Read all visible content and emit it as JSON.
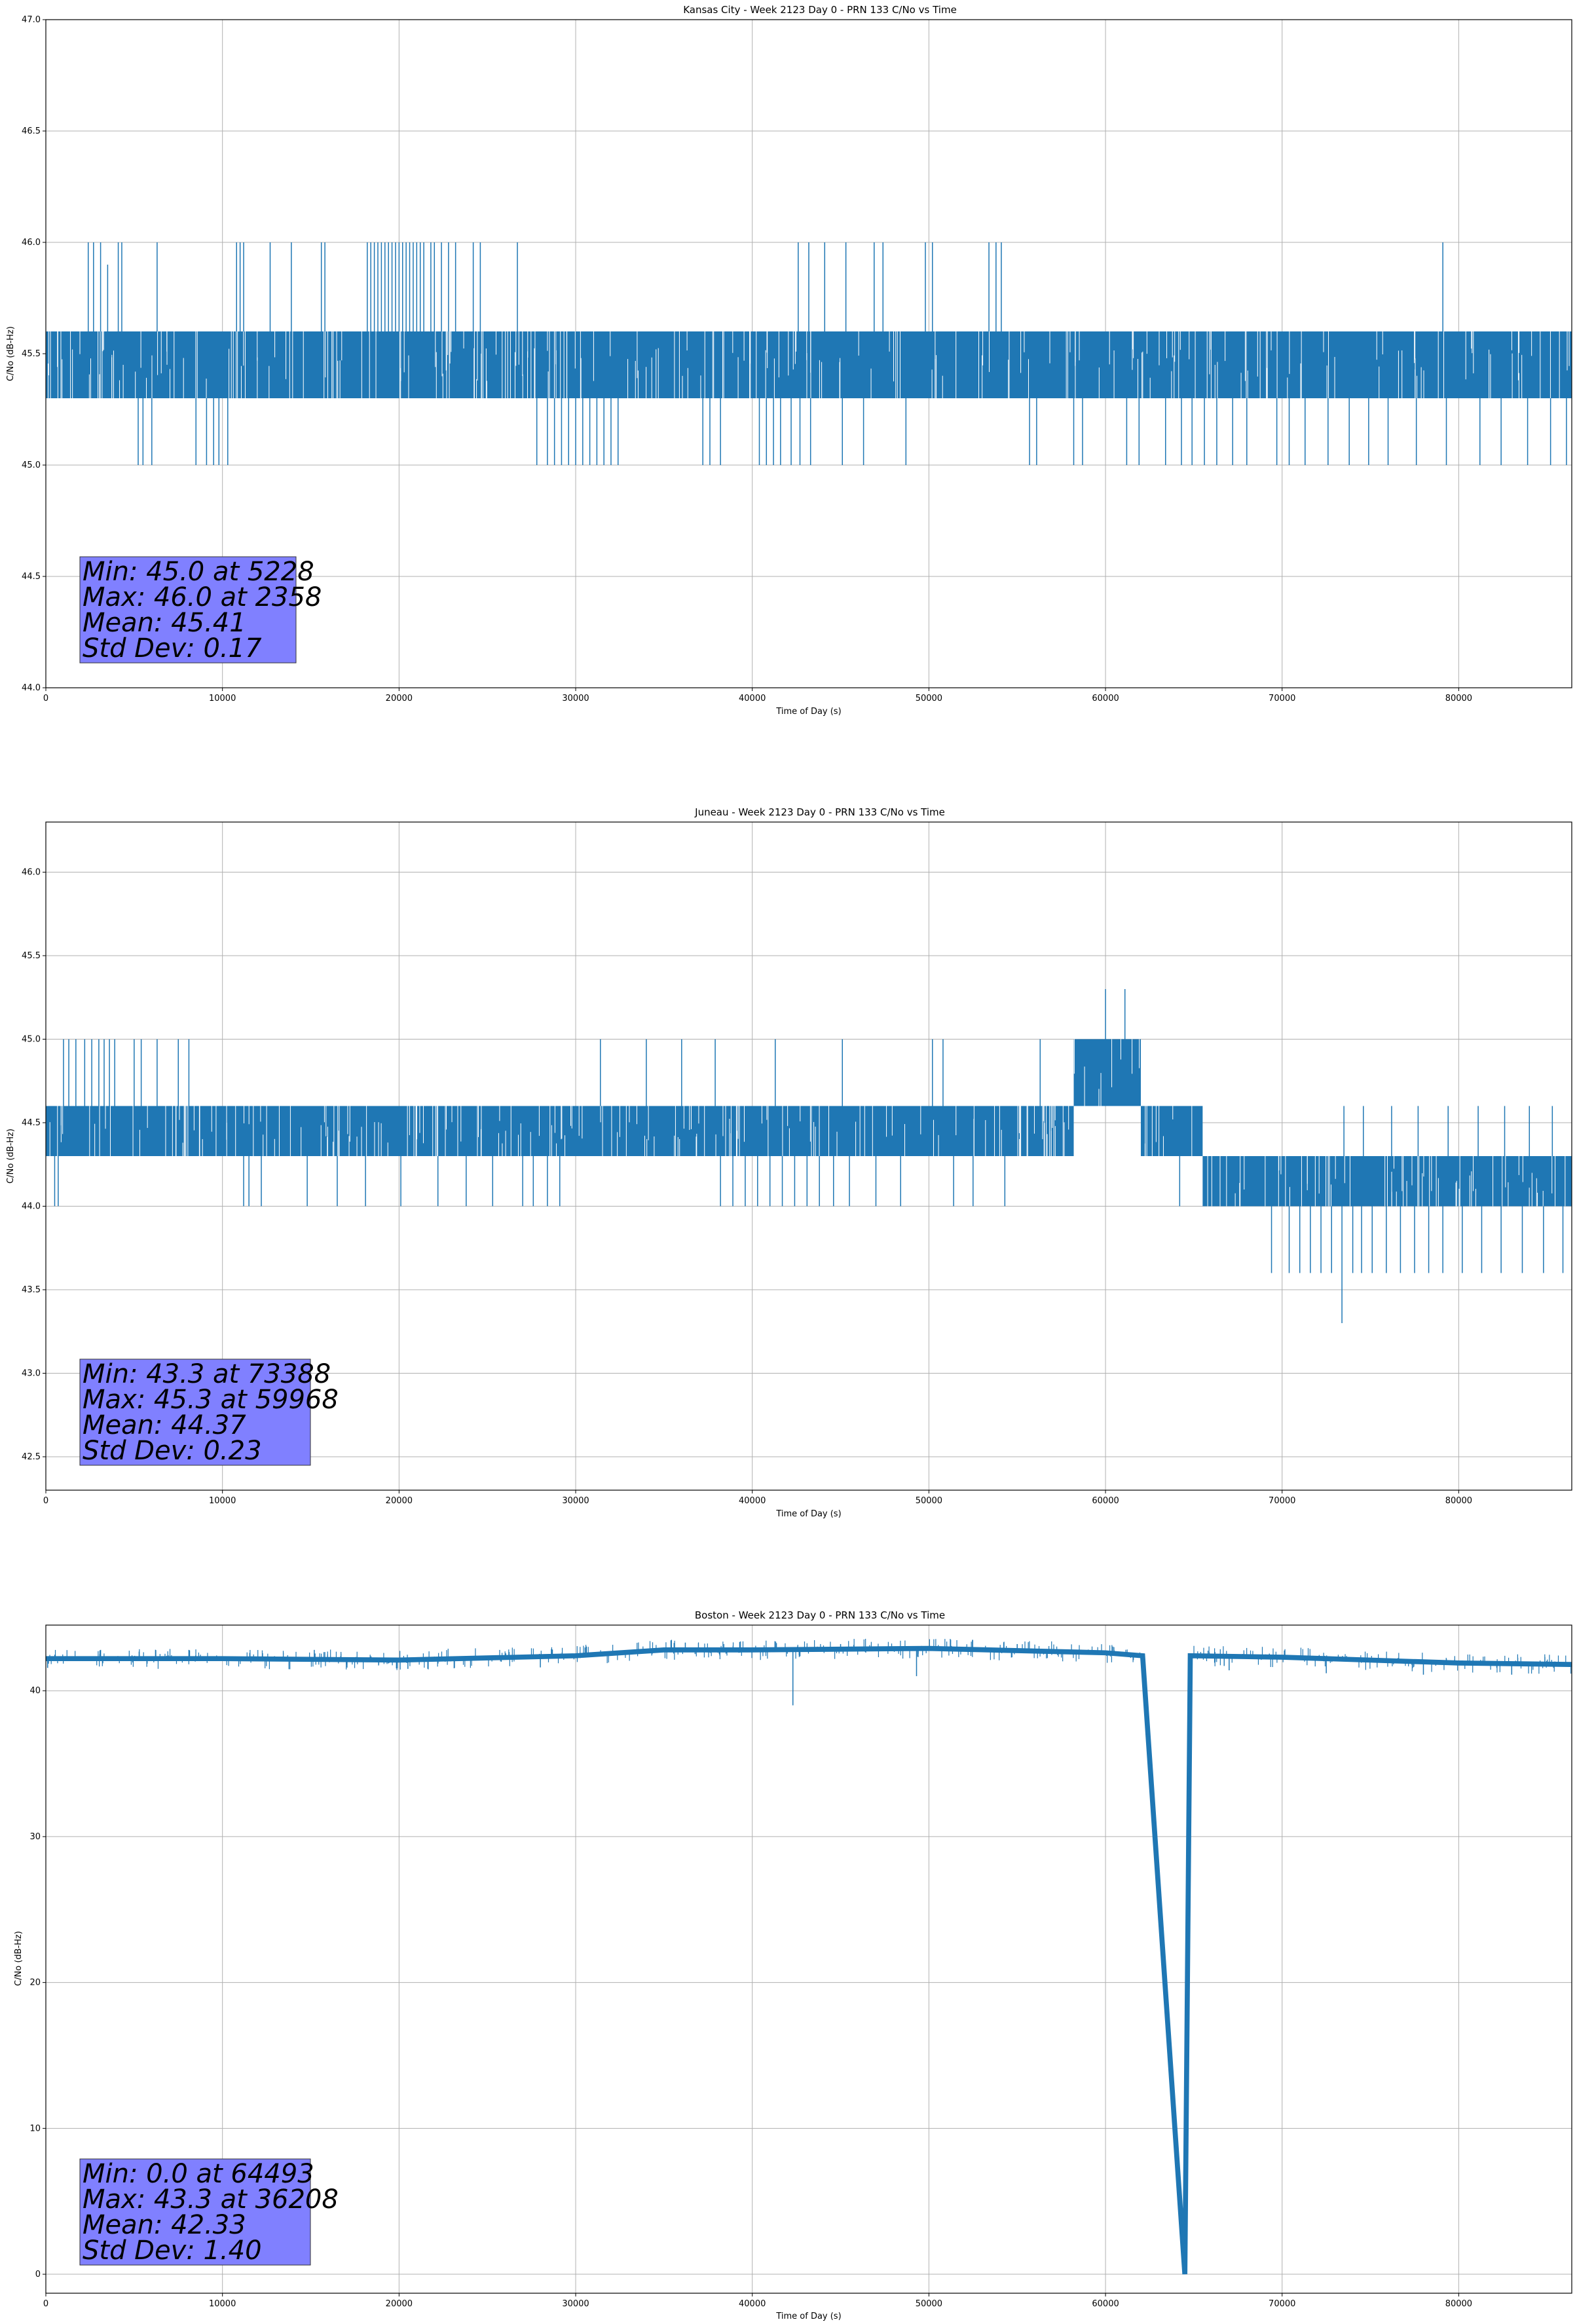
{
  "chart_data": [
    {
      "type": "line",
      "title": "Kansas City - Week 2123 Day 0 - PRN 133 C/No vs Time",
      "xlabel": "Time of Day (s)",
      "ylabel": "C/No (dB-Hz)",
      "xlim": [
        0,
        86400
      ],
      "ylim": [
        44.0,
        47.0
      ],
      "xticks": [
        0,
        10000,
        20000,
        30000,
        40000,
        50000,
        60000,
        70000,
        80000
      ],
      "yticks": [
        44.0,
        44.5,
        45.0,
        45.5,
        46.0,
        46.5,
        47.0
      ],
      "ytick_labels": [
        "44.0",
        "44.5",
        "45.0",
        "45.5",
        "46.0",
        "46.5",
        "47.0"
      ],
      "grid": true,
      "line_color": "#1f77b4",
      "stats_box_color": "#8080ff",
      "series": [
        {
          "name": "C/No",
          "base_low": 45.3,
          "base_high": 45.6,
          "spikes_up": [
            [
              2400,
              46.0
            ],
            [
              2700,
              46.0
            ],
            [
              3100,
              46.0
            ],
            [
              3500,
              45.9
            ],
            [
              4100,
              46.0
            ],
            [
              4300,
              46.0
            ],
            [
              6300,
              46.0
            ],
            [
              10800,
              46.0
            ],
            [
              11000,
              46.0
            ],
            [
              11200,
              46.0
            ],
            [
              12700,
              46.0
            ],
            [
              13900,
              46.0
            ],
            [
              15600,
              46.0
            ],
            [
              15800,
              46.0
            ],
            [
              18200,
              46.0
            ],
            [
              18400,
              46.0
            ],
            [
              18600,
              46.0
            ],
            [
              18800,
              46.0
            ],
            [
              19000,
              46.0
            ],
            [
              19200,
              46.0
            ],
            [
              19400,
              46.0
            ],
            [
              19600,
              46.0
            ],
            [
              19800,
              46.0
            ],
            [
              20000,
              46.0
            ],
            [
              20200,
              46.0
            ],
            [
              20400,
              46.0
            ],
            [
              20600,
              46.0
            ],
            [
              20800,
              46.0
            ],
            [
              21000,
              46.0
            ],
            [
              21200,
              46.0
            ],
            [
              21400,
              46.0
            ],
            [
              21800,
              46.0
            ],
            [
              22000,
              46.0
            ],
            [
              22400,
              46.0
            ],
            [
              22800,
              46.0
            ],
            [
              23200,
              46.0
            ],
            [
              24200,
              46.0
            ],
            [
              24600,
              46.0
            ],
            [
              26700,
              46.0
            ],
            [
              42600,
              46.0
            ],
            [
              43200,
              46.0
            ],
            [
              44100,
              46.0
            ],
            [
              45300,
              46.0
            ],
            [
              46900,
              46.0
            ],
            [
              47400,
              46.0
            ],
            [
              49800,
              46.0
            ],
            [
              50200,
              46.0
            ],
            [
              53400,
              46.0
            ],
            [
              53800,
              46.0
            ],
            [
              54100,
              46.0
            ],
            [
              79100,
              46.0
            ]
          ],
          "dense_dips": [
            [
              5228,
              45.0
            ],
            [
              5500,
              45.0
            ],
            [
              6000,
              45.0
            ],
            [
              8500,
              45.0
            ],
            [
              9100,
              45.0
            ],
            [
              9500,
              45.0
            ],
            [
              9800,
              45.0
            ],
            [
              10300,
              45.0
            ],
            [
              27800,
              45.0
            ],
            [
              28400,
              45.0
            ],
            [
              28800,
              45.0
            ],
            [
              29200,
              45.0
            ],
            [
              29600,
              45.0
            ],
            [
              30000,
              45.0
            ],
            [
              30400,
              45.0
            ],
            [
              30800,
              45.0
            ],
            [
              31200,
              45.0
            ],
            [
              31600,
              45.0
            ],
            [
              32000,
              45.0
            ],
            [
              32400,
              45.0
            ],
            [
              37200,
              45.0
            ],
            [
              37600,
              45.0
            ],
            [
              38200,
              45.0
            ],
            [
              40400,
              45.0
            ],
            [
              40800,
              45.0
            ],
            [
              41200,
              45.0
            ],
            [
              41600,
              45.0
            ],
            [
              42200,
              45.0
            ],
            [
              42700,
              45.0
            ],
            [
              43300,
              45.0
            ],
            [
              45100,
              45.0
            ],
            [
              46300,
              45.0
            ],
            [
              48700,
              45.0
            ],
            [
              55700,
              45.0
            ],
            [
              56100,
              45.0
            ],
            [
              58200,
              45.0
            ],
            [
              58700,
              45.0
            ],
            [
              61200,
              45.0
            ],
            [
              61900,
              45.0
            ],
            [
              63400,
              45.0
            ],
            [
              64300,
              45.0
            ],
            [
              64900,
              45.0
            ],
            [
              65600,
              45.0
            ],
            [
              66300,
              45.0
            ],
            [
              67200,
              45.0
            ],
            [
              68000,
              45.0
            ],
            [
              69700,
              45.0
            ],
            [
              70400,
              45.0
            ],
            [
              71300,
              45.0
            ],
            [
              72600,
              45.0
            ],
            [
              73800,
              45.0
            ],
            [
              74900,
              45.0
            ],
            [
              76000,
              45.0
            ],
            [
              77600,
              45.0
            ],
            [
              79300,
              45.0
            ],
            [
              81200,
              45.0
            ],
            [
              82400,
              45.0
            ],
            [
              83900,
              45.0
            ],
            [
              85200,
              45.0
            ],
            [
              86100,
              45.0
            ]
          ]
        }
      ],
      "stats": {
        "min": "Min: 45.0 at 5228",
        "max": "Max: 46.0 at 2358",
        "mean": "Mean: 45.41",
        "std": "Std Dev: 0.17"
      },
      "stats_position": "lower-left"
    },
    {
      "type": "line",
      "title": "Juneau - Week 2123 Day 0 - PRN 133 C/No vs Time",
      "xlabel": "Time of Day (s)",
      "ylabel": "C/No (dB-Hz)",
      "xlim": [
        0,
        86400
      ],
      "ylim": [
        42.3,
        46.3
      ],
      "xticks": [
        0,
        10000,
        20000,
        30000,
        40000,
        50000,
        60000,
        70000,
        80000
      ],
      "yticks": [
        42.5,
        43.0,
        43.5,
        44.0,
        44.5,
        45.0,
        45.5,
        46.0
      ],
      "ytick_labels": [
        "42.5",
        "43.0",
        "43.5",
        "44.0",
        "44.5",
        "45.0",
        "45.5",
        "46.0"
      ],
      "grid": true,
      "line_color": "#1f77b4",
      "stats_box_color": "#8080ff",
      "series": [
        {
          "name": "C/No",
          "segments": [
            {
              "x0": 0,
              "x1": 58200,
              "low": 44.3,
              "high": 44.6
            },
            {
              "x0": 58200,
              "x1": 62000,
              "low": 44.6,
              "high": 45.0
            },
            {
              "x0": 62000,
              "x1": 65500,
              "low": 44.3,
              "high": 44.6
            },
            {
              "x0": 65500,
              "x1": 86400,
              "low": 44.0,
              "high": 44.3
            }
          ],
          "spikes_up": [
            [
              1000,
              45.0
            ],
            [
              1300,
              45.0
            ],
            [
              1700,
              45.0
            ],
            [
              2200,
              45.0
            ],
            [
              2600,
              45.0
            ],
            [
              3000,
              45.0
            ],
            [
              3300,
              45.0
            ],
            [
              3600,
              45.0
            ],
            [
              3900,
              45.0
            ],
            [
              5000,
              45.0
            ],
            [
              5400,
              45.0
            ],
            [
              6300,
              45.0
            ],
            [
              7500,
              45.0
            ],
            [
              8100,
              45.0
            ],
            [
              31400,
              45.0
            ],
            [
              34000,
              45.0
            ],
            [
              36000,
              45.0
            ],
            [
              37900,
              45.0
            ],
            [
              41300,
              45.0
            ],
            [
              45100,
              45.0
            ],
            [
              50200,
              45.0
            ],
            [
              50800,
              45.0
            ],
            [
              56300,
              45.0
            ],
            [
              60000,
              45.3
            ],
            [
              61100,
              45.3
            ],
            [
              73500,
              44.6
            ],
            [
              74600,
              44.6
            ],
            [
              76200,
              44.6
            ],
            [
              77700,
              44.6
            ],
            [
              79400,
              44.6
            ],
            [
              81100,
              44.6
            ],
            [
              82600,
              44.6
            ],
            [
              84000,
              44.6
            ],
            [
              85300,
              44.6
            ]
          ],
          "dense_dips": [
            [
              500,
              44.0
            ],
            [
              700,
              44.0
            ],
            [
              11200,
              44.0
            ],
            [
              11500,
              44.0
            ],
            [
              12200,
              44.0
            ],
            [
              14800,
              44.0
            ],
            [
              16500,
              44.0
            ],
            [
              18100,
              44.0
            ],
            [
              20100,
              44.0
            ],
            [
              22200,
              44.0
            ],
            [
              23800,
              44.0
            ],
            [
              25300,
              44.0
            ],
            [
              27000,
              44.0
            ],
            [
              27600,
              44.0
            ],
            [
              28400,
              44.0
            ],
            [
              29100,
              44.0
            ],
            [
              38200,
              44.0
            ],
            [
              38900,
              44.0
            ],
            [
              39600,
              44.0
            ],
            [
              40300,
              44.0
            ],
            [
              41000,
              44.0
            ],
            [
              41700,
              44.0
            ],
            [
              42400,
              44.0
            ],
            [
              43100,
              44.0
            ],
            [
              43800,
              44.0
            ],
            [
              44600,
              44.0
            ],
            [
              45500,
              44.0
            ],
            [
              47000,
              44.0
            ],
            [
              48400,
              44.0
            ],
            [
              51400,
              44.0
            ],
            [
              52500,
              44.0
            ],
            [
              54300,
              44.0
            ],
            [
              64200,
              44.0
            ],
            [
              66000,
              44.0
            ],
            [
              69400,
              43.6
            ],
            [
              70400,
              43.6
            ],
            [
              71000,
              43.6
            ],
            [
              71600,
              43.6
            ],
            [
              72200,
              43.6
            ],
            [
              72800,
              43.6
            ],
            [
              73388,
              43.3
            ],
            [
              74000,
              43.6
            ],
            [
              74500,
              43.6
            ],
            [
              75100,
              43.6
            ],
            [
              75900,
              43.6
            ],
            [
              76700,
              43.6
            ],
            [
              77500,
              43.6
            ],
            [
              78300,
              43.6
            ],
            [
              79100,
              43.6
            ],
            [
              80200,
              43.6
            ],
            [
              81300,
              43.6
            ],
            [
              82400,
              43.6
            ],
            [
              83600,
              43.6
            ],
            [
              84800,
              43.6
            ],
            [
              85900,
              43.6
            ]
          ]
        }
      ],
      "stats": {
        "min": "Min: 43.3 at 73388",
        "max": "Max: 45.3 at 59968",
        "mean": "Mean: 44.37",
        "std": "Std Dev: 0.23"
      },
      "stats_position": "lower-left"
    },
    {
      "type": "line",
      "title": "Boston - Week 2123 Day 0 - PRN 133 C/No vs Time",
      "xlabel": "Time of Day (s)",
      "ylabel": "C/No (dB-Hz)",
      "xlim": [
        0,
        86400
      ],
      "ylim": [
        -1.3,
        44.5
      ],
      "xticks": [
        0,
        10000,
        20000,
        30000,
        40000,
        50000,
        60000,
        70000,
        80000
      ],
      "yticks": [
        0,
        10,
        20,
        30,
        40
      ],
      "ytick_labels": [
        "0",
        "10",
        "20",
        "30",
        "40"
      ],
      "grid": true,
      "line_color": "#1f77b4",
      "stats_box_color": "#8080ff",
      "series": [
        {
          "name": "C/No",
          "trace": [
            [
              0,
              42.2
            ],
            [
              10000,
              42.2
            ],
            [
              20000,
              42.1
            ],
            [
              30000,
              42.4
            ],
            [
              35000,
              42.8
            ],
            [
              40000,
              42.8
            ],
            [
              50000,
              42.9
            ],
            [
              60000,
              42.6
            ],
            [
              62100,
              42.4
            ],
            [
              64493,
              0.0
            ],
            [
              64800,
              42.4
            ],
            [
              70000,
              42.3
            ],
            [
              80000,
              41.9
            ],
            [
              86400,
              41.8
            ]
          ],
          "band_halfwidth": 0.3,
          "noise_spikes": [
            [
              42300,
              39.0
            ],
            [
              49300,
              41.0
            ],
            [
              20500,
              41.5
            ],
            [
              28000,
              41.6
            ],
            [
              67000,
              41.4
            ],
            [
              72500,
              41.2
            ],
            [
              78000,
              41.1
            ],
            [
              83000,
              41.1
            ],
            [
              3100,
              42.8
            ],
            [
              8100,
              42.8
            ],
            [
              15200,
              42.8
            ],
            [
              36208,
              43.3
            ],
            [
              45000,
              43.2
            ],
            [
              55000,
              43.2
            ]
          ]
        }
      ],
      "stats": {
        "min": "Min: 0.0 at 64493",
        "max": "Max: 43.3 at 36208",
        "mean": "Mean: 42.33",
        "std": "Std Dev: 1.40"
      },
      "stats_position": "lower-left"
    }
  ]
}
